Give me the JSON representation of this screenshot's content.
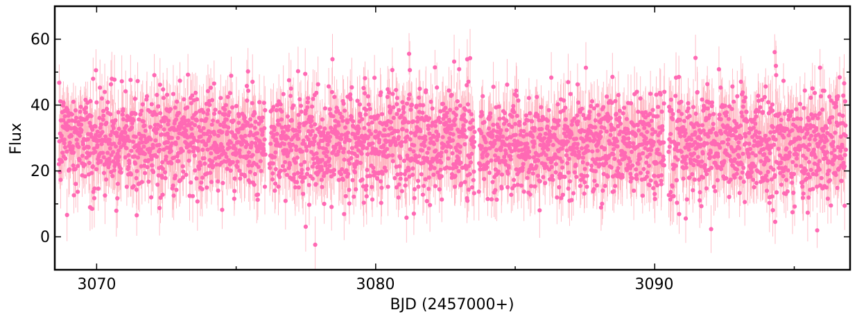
{
  "chart_data": {
    "type": "scatter",
    "xlabel": "BJD (2457000+)",
    "ylabel": "Flux",
    "xlim": [
      3068.5,
      3097.0
    ],
    "ylim": [
      -10,
      70
    ],
    "xticks": [
      3070,
      3080,
      3090
    ],
    "yticks": [
      0,
      20,
      40,
      60
    ],
    "grid": false,
    "error_bars": true,
    "colors": {
      "marker": "#ff69b4",
      "error_bar": "#ffb6c1",
      "axes": "#000000"
    },
    "segments": [
      {
        "x_start": 3068.65,
        "x_end": 3076.05,
        "mean_flux": 28.5,
        "scatter": 7.5
      },
      {
        "x_start": 3076.2,
        "x_end": 3083.55,
        "mean_flux": 28.5,
        "scatter": 8.5
      },
      {
        "x_start": 3083.7,
        "x_end": 3090.35,
        "mean_flux": 28.0,
        "scatter": 7.5
      },
      {
        "x_start": 3090.5,
        "x_end": 3096.85,
        "mean_flux": 28.0,
        "scatter": 8.5
      }
    ],
    "x_labels": [
      "3070",
      "3080",
      "3090"
    ],
    "y_labels": [
      "0",
      "20",
      "40",
      "60"
    ]
  }
}
